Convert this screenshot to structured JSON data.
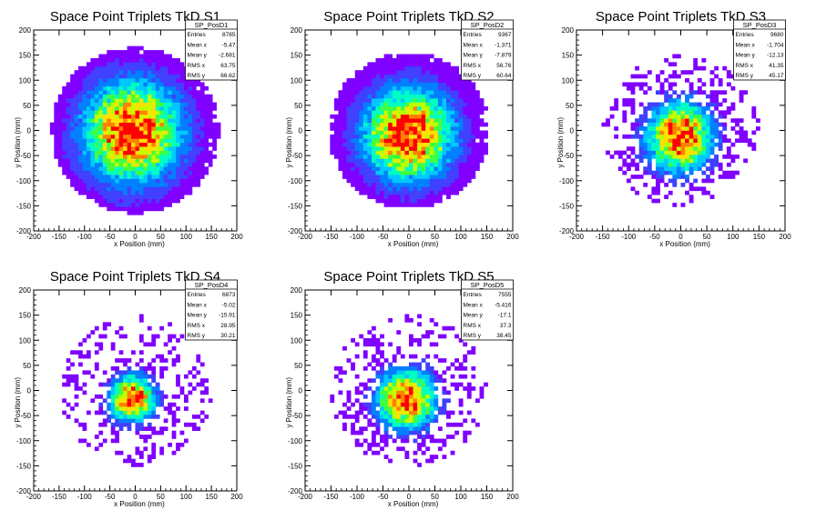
{
  "chart_data": [
    {
      "type": "heatmap",
      "title": "Space Point Triplets TkD S1",
      "xlabel": "x Position (mm)",
      "ylabel": "y Position (mm)",
      "xlim": [
        -200,
        200
      ],
      "ylim": [
        -200,
        200
      ],
      "x_ticks": [
        "-200",
        "-150",
        "-100",
        "-50",
        "0",
        "50",
        "100",
        "150",
        "200"
      ],
      "y_ticks": [
        "-200",
        "-150",
        "-100",
        "-50",
        "0",
        "50",
        "100",
        "150",
        "200"
      ],
      "distribution": {
        "mean_x": -5.47,
        "mean_y": -2.681,
        "rms_x": 63.75,
        "rms_y": 66.62,
        "radius": 165
      },
      "stats": {
        "name": "SP_PosD1",
        "rows": [
          {
            "label": "Entries",
            "value": "8785"
          },
          {
            "label": "Mean x",
            "value": "-5.47"
          },
          {
            "label": "Mean y",
            "value": "-2.681"
          },
          {
            "label": "RMS x",
            "value": "63.75"
          },
          {
            "label": "RMS y",
            "value": "66.62"
          }
        ]
      }
    },
    {
      "type": "heatmap",
      "title": "Space Point Triplets TkD S2",
      "xlabel": "x Position (mm)",
      "ylabel": "y Position (mm)",
      "xlim": [
        -200,
        200
      ],
      "ylim": [
        -200,
        200
      ],
      "x_ticks": [
        "-200",
        "-150",
        "-100",
        "-50",
        "0",
        "50",
        "100",
        "150",
        "200"
      ],
      "y_ticks": [
        "-200",
        "-150",
        "-100",
        "-50",
        "0",
        "50",
        "100",
        "150",
        "200"
      ],
      "distribution": {
        "mean_x": -1.371,
        "mean_y": -7.879,
        "rms_x": 56.76,
        "rms_y": 60.64,
        "radius": 155
      },
      "stats": {
        "name": "SP_PosD2",
        "rows": [
          {
            "label": "Entries",
            "value": "9367"
          },
          {
            "label": "Mean x",
            "value": "-1.371"
          },
          {
            "label": "Mean y",
            "value": "-7.879"
          },
          {
            "label": "RMS x",
            "value": "56.76"
          },
          {
            "label": "RMS y",
            "value": "60.64"
          }
        ]
      }
    },
    {
      "type": "heatmap",
      "title": "Space Point Triplets TkD S3",
      "xlabel": "x Position (mm)",
      "ylabel": "y Position (mm)",
      "xlim": [
        -200,
        200
      ],
      "ylim": [
        -200,
        200
      ],
      "x_ticks": [
        "-200",
        "-150",
        "-100",
        "-50",
        "0",
        "50",
        "100",
        "150",
        "200"
      ],
      "y_ticks": [
        "-200",
        "-150",
        "-100",
        "-50",
        "0",
        "50",
        "100",
        "150",
        "200"
      ],
      "distribution": {
        "mean_x": -1.704,
        "mean_y": -12.13,
        "rms_x": 41.35,
        "rms_y": 45.17,
        "radius": 150
      },
      "stats": {
        "name": "SP_PosD3",
        "rows": [
          {
            "label": "Entries",
            "value": "9680"
          },
          {
            "label": "Mean x",
            "value": "-1.704"
          },
          {
            "label": "Mean y",
            "value": "-12.13"
          },
          {
            "label": "RMS x",
            "value": "41.35"
          },
          {
            "label": "RMS y",
            "value": "45.17"
          }
        ]
      }
    },
    {
      "type": "heatmap",
      "title": "Space Point Triplets TkD S4",
      "xlabel": "x Position (mm)",
      "ylabel": "y Position (mm)",
      "xlim": [
        -200,
        200
      ],
      "ylim": [
        -200,
        200
      ],
      "x_ticks": [
        "-200",
        "-150",
        "-100",
        "-50",
        "0",
        "50",
        "100",
        "150",
        "200"
      ],
      "y_ticks": [
        "-200",
        "-150",
        "-100",
        "-50",
        "0",
        "50",
        "100",
        "150",
        "200"
      ],
      "distribution": {
        "mean_x": -5.02,
        "mean_y": -15.91,
        "rms_x": 28.95,
        "rms_y": 30.21,
        "radius": 150
      },
      "stats": {
        "name": "SP_PosD4",
        "rows": [
          {
            "label": "Entries",
            "value": "6873"
          },
          {
            "label": "Mean x",
            "value": "-5.02"
          },
          {
            "label": "Mean y",
            "value": "-15.91"
          },
          {
            "label": "RMS x",
            "value": "28.95"
          },
          {
            "label": "RMS y",
            "value": "30.21"
          }
        ]
      }
    },
    {
      "type": "heatmap",
      "title": "Space Point Triplets TkD S5",
      "xlabel": "x Position (mm)",
      "ylabel": "y Position (mm)",
      "xlim": [
        -200,
        200
      ],
      "ylim": [
        -200,
        200
      ],
      "x_ticks": [
        "-200",
        "-150",
        "-100",
        "-50",
        "0",
        "50",
        "100",
        "150",
        "200"
      ],
      "y_ticks": [
        "-200",
        "-150",
        "-100",
        "-50",
        "0",
        "50",
        "100",
        "150",
        "200"
      ],
      "distribution": {
        "mean_x": -5.416,
        "mean_y": -17.1,
        "rms_x": 37.3,
        "rms_y": 38.45,
        "radius": 150
      },
      "stats": {
        "name": "SP_PosD5",
        "rows": [
          {
            "label": "Entries",
            "value": "7555"
          },
          {
            "label": "Mean x",
            "value": "-5.416"
          },
          {
            "label": "Mean y",
            "value": "-17.1"
          },
          {
            "label": "RMS x",
            "value": "37.3"
          },
          {
            "label": "RMS y",
            "value": "38.45"
          }
        ]
      }
    }
  ],
  "colors": {
    "palette": [
      "#7f00ff",
      "#4040ff",
      "#0080ff",
      "#00c8ff",
      "#00ffc0",
      "#40ff40",
      "#c0ff00",
      "#ffe000",
      "#ff8000",
      "#ff0000"
    ],
    "frame": "#000000",
    "background": "#ffffff"
  }
}
